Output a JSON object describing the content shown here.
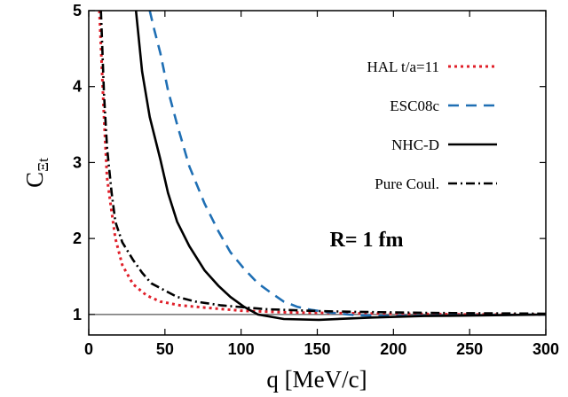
{
  "chart_data": {
    "type": "line",
    "xlabel": "q [MeV/c]",
    "ylabel": "C",
    "ylabel_subscript": "Ξt",
    "annotation": "R= 1 fm",
    "reference_line": 1,
    "xlim": [
      0,
      300
    ],
    "xticks": [
      0,
      50,
      100,
      150,
      200,
      250,
      300
    ],
    "ylim": [
      0.73,
      5
    ],
    "yticks": [
      1,
      2,
      3,
      4,
      5
    ],
    "series": [
      {
        "name": "HAL t/a=11",
        "color": "#e0202a",
        "dash": "dotted",
        "x": [
          7,
          10,
          12,
          15,
          17.5,
          22,
          29,
          38,
          47,
          60,
          76,
          100,
          125,
          150,
          200,
          250,
          300
        ],
        "values": [
          5,
          3.6,
          2.8,
          2.35,
          2.0,
          1.65,
          1.4,
          1.25,
          1.17,
          1.12,
          1.09,
          1.05,
          1.03,
          1.02,
          1.01,
          1.0,
          1.0
        ]
      },
      {
        "name": "ESC08c",
        "color": "#1f6fb4",
        "dash": "dashed",
        "x": [
          40,
          43,
          47,
          52,
          58,
          66,
          76,
          85,
          93,
          102,
          111,
          120,
          128,
          137,
          146,
          160,
          175,
          200,
          250,
          300
        ],
        "values": [
          5,
          4.75,
          4.44,
          3.95,
          3.5,
          2.95,
          2.46,
          2.1,
          1.82,
          1.6,
          1.41,
          1.28,
          1.17,
          1.1,
          1.06,
          1.02,
          0.99,
          0.98,
          0.99,
          1.0
        ]
      },
      {
        "name": "NHC-D",
        "color": "#000000",
        "dash": "solid",
        "x": [
          31,
          35,
          40,
          47,
          52,
          58,
          66,
          76,
          85,
          93,
          102,
          111,
          128,
          151,
          186,
          220,
          250,
          300
        ],
        "values": [
          5,
          4.2,
          3.6,
          3.04,
          2.6,
          2.22,
          1.9,
          1.58,
          1.38,
          1.23,
          1.1,
          1.0,
          0.94,
          0.93,
          0.96,
          0.98,
          0.985,
          1.0
        ]
      },
      {
        "name": "Pure Coul.",
        "color": "#000000",
        "dash": "dashdot",
        "x": [
          8,
          10,
          12,
          15,
          17.5,
          22,
          29,
          35,
          41,
          58,
          70,
          87,
          116,
          150,
          175,
          225,
          300
        ],
        "values": [
          5,
          3.9,
          3.2,
          2.6,
          2.22,
          1.95,
          1.72,
          1.55,
          1.41,
          1.23,
          1.17,
          1.12,
          1.07,
          1.045,
          1.035,
          1.02,
          1.01
        ]
      }
    ]
  }
}
